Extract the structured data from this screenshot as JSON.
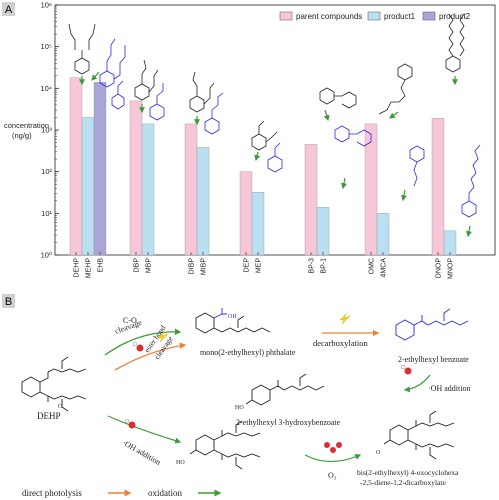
{
  "panel_a_label": "A",
  "panel_b_label": "B",
  "chart_data": {
    "type": "bar",
    "y_scale": "log",
    "ylim": [
      1,
      1000000
    ],
    "ylabel_line1": "concentration",
    "ylabel_line2": "(ng/g)",
    "ytick_labels": [
      "10⁰",
      "10¹",
      "10²",
      "10³",
      "10⁴",
      "10⁵",
      "10⁶"
    ],
    "legend_position": "top-right",
    "series": [
      {
        "name": "parent compounds",
        "color": "#f7c6d9"
      },
      {
        "name": "product1",
        "color": "#b9dff0"
      },
      {
        "name": "product2",
        "color": "#a9a5d8"
      }
    ],
    "groups": [
      {
        "bars": [
          {
            "label": "DEHP",
            "series": 0,
            "value": 18000
          },
          {
            "label": "MEHP",
            "series": 1,
            "value": 2000
          },
          {
            "label": "EHB",
            "series": 2,
            "value": 14000
          }
        ]
      },
      {
        "bars": [
          {
            "label": "DBP",
            "series": 0,
            "value": 5000
          },
          {
            "label": "MBP",
            "series": 1,
            "value": 1400
          }
        ]
      },
      {
        "bars": [
          {
            "label": "DIBP",
            "series": 0,
            "value": 1400
          },
          {
            "label": "MIBP",
            "series": 1,
            "value": 380
          }
        ]
      },
      {
        "bars": [
          {
            "label": "DEP",
            "series": 0,
            "value": 100
          },
          {
            "label": "MEP",
            "series": 1,
            "value": 32
          }
        ]
      },
      {
        "bars": [
          {
            "label": "BP-3",
            "series": 0,
            "value": 450
          },
          {
            "label": "BP-1",
            "series": 1,
            "value": 14
          }
        ]
      },
      {
        "bars": [
          {
            "label": "OMC",
            "series": 0,
            "value": 1400
          },
          {
            "label": "4MCA",
            "series": 1,
            "value": 10
          }
        ]
      },
      {
        "bars": [
          {
            "label": "DNOP",
            "series": 0,
            "value": 1900
          },
          {
            "label": "MNOP",
            "series": 1,
            "value": 3.8
          }
        ]
      }
    ]
  },
  "scheme": {
    "c_o_cleavage": "C-O",
    "c_o_cleavage2": "cleavage",
    "ester_bond": "ester bond",
    "ester_bond2": "cleavage",
    "decarboxylation": "decarboxylation",
    "oh_addition_right": "·OH addition",
    "oh_addition_left": "·OH addition",
    "o3": "O₃",
    "dehp": "DEHP",
    "mehp": "mono(2-ethylhexyl) phthalate",
    "ehb": "2-ethylhexyl benzoate",
    "hydroxybenzoate": "2-ethylhexyl 3-hydroxybenzoate",
    "oxo_line1": "bis(2-ethylhexyl) 4-oxocyclohexa",
    "oxo_line2": "-2,5-diene-1,2-dicarboxylate",
    "legend_photolysis": "direct photolysis",
    "legend_oxidation": "oxidation",
    "ho_label": "HO",
    "oh_label": "OH"
  },
  "colors": {
    "arrow_green": "#3d9b3a",
    "arrow_orange": "#e8843a",
    "blue_structure": "#2a2ae0",
    "radical_red": "#d9302f",
    "lightning_yellow": "#f3d21f"
  }
}
